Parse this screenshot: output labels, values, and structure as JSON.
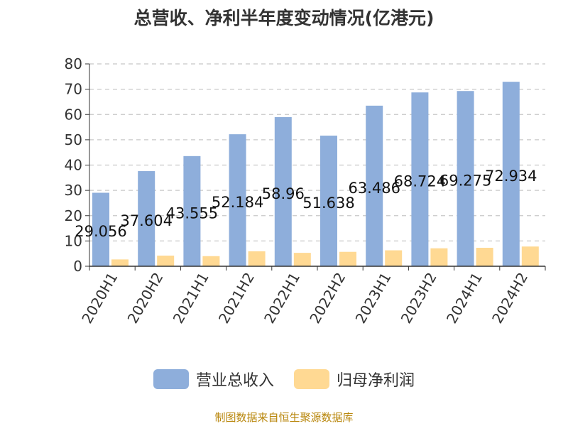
{
  "chart_data": {
    "type": "bar",
    "title": "总营收、净利半年度变动情况(亿港元)",
    "categories": [
      "2020H1",
      "2020H2",
      "2021H1",
      "2021H2",
      "2022H1",
      "2022H2",
      "2023H1",
      "2023H2",
      "2024H1",
      "2024H2"
    ],
    "series": [
      {
        "name": "营业总收入",
        "color": "#8eaedb",
        "labels": true,
        "values": [
          29.056,
          37.604,
          43.555,
          52.184,
          58.96,
          51.638,
          63.486,
          68.724,
          69.275,
          72.934
        ],
        "value_labels": [
          "29.056",
          "37.604",
          "43.555",
          "52.184",
          "58.96",
          "51.638",
          "63.486",
          "68.724",
          "69.275",
          "72.934"
        ]
      },
      {
        "name": "归母净利润",
        "color": "#ffd993",
        "labels": false,
        "values": [
          2.7,
          4.2,
          4.0,
          5.9,
          5.3,
          5.7,
          6.3,
          7.1,
          7.3,
          7.8
        ]
      }
    ],
    "ylim": [
      0,
      80
    ],
    "yticks": [
      0,
      10,
      20,
      30,
      40,
      50,
      60,
      70,
      80
    ],
    "grid": true,
    "legend": "bottom"
  },
  "source": "制图数据来自恒生聚源数据库"
}
